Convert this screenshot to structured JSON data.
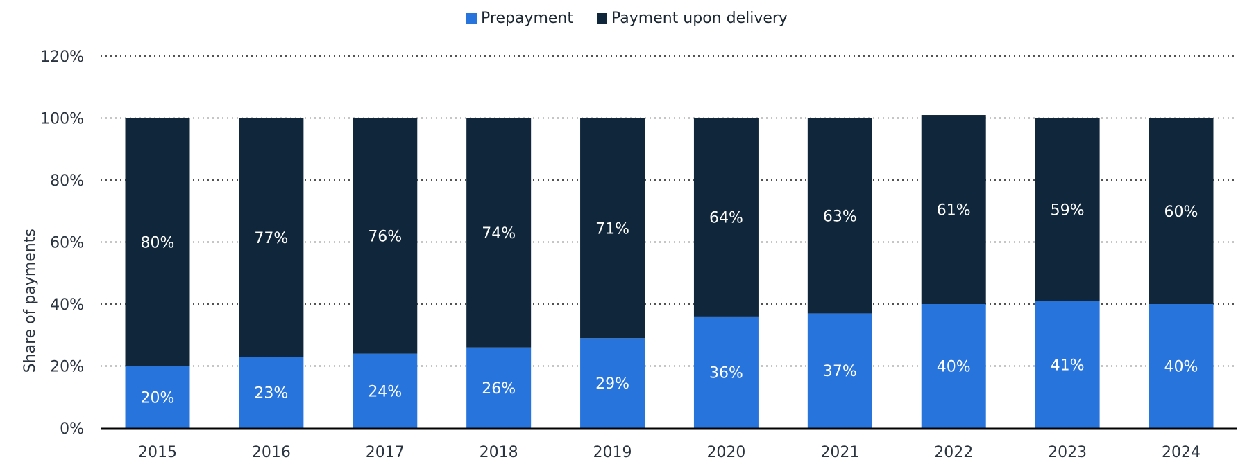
{
  "chart_data": {
    "type": "bar",
    "stacked": true,
    "categories": [
      "2015",
      "2016",
      "2017",
      "2018",
      "2019",
      "2020",
      "2021",
      "2022",
      "2023",
      "2024"
    ],
    "series": [
      {
        "name": "Prepayment",
        "color": "#2874dd",
        "values": [
          20,
          23,
          24,
          26,
          29,
          36,
          37,
          40,
          41,
          40
        ],
        "labels": [
          "20%",
          "23%",
          "24%",
          "26%",
          "29%",
          "36%",
          "37%",
          "40%",
          "41%",
          "40%"
        ]
      },
      {
        "name": "Payment upon delivery",
        "color": "#10263b",
        "values": [
          80,
          77,
          76,
          74,
          71,
          64,
          63,
          61,
          59,
          60
        ],
        "labels": [
          "80%",
          "77%",
          "76%",
          "74%",
          "71%",
          "64%",
          "63%",
          "61%",
          "59%",
          "60%"
        ]
      }
    ],
    "ylabel": "Share of payments",
    "xlabel": "",
    "ylim": [
      0,
      120
    ],
    "yticks": [
      0,
      20,
      40,
      60,
      80,
      100,
      120
    ],
    "ytick_labels": [
      "0%",
      "20%",
      "40%",
      "60%",
      "80%",
      "100%",
      "120%"
    ],
    "grid": true,
    "legend_position": "top-center"
  }
}
